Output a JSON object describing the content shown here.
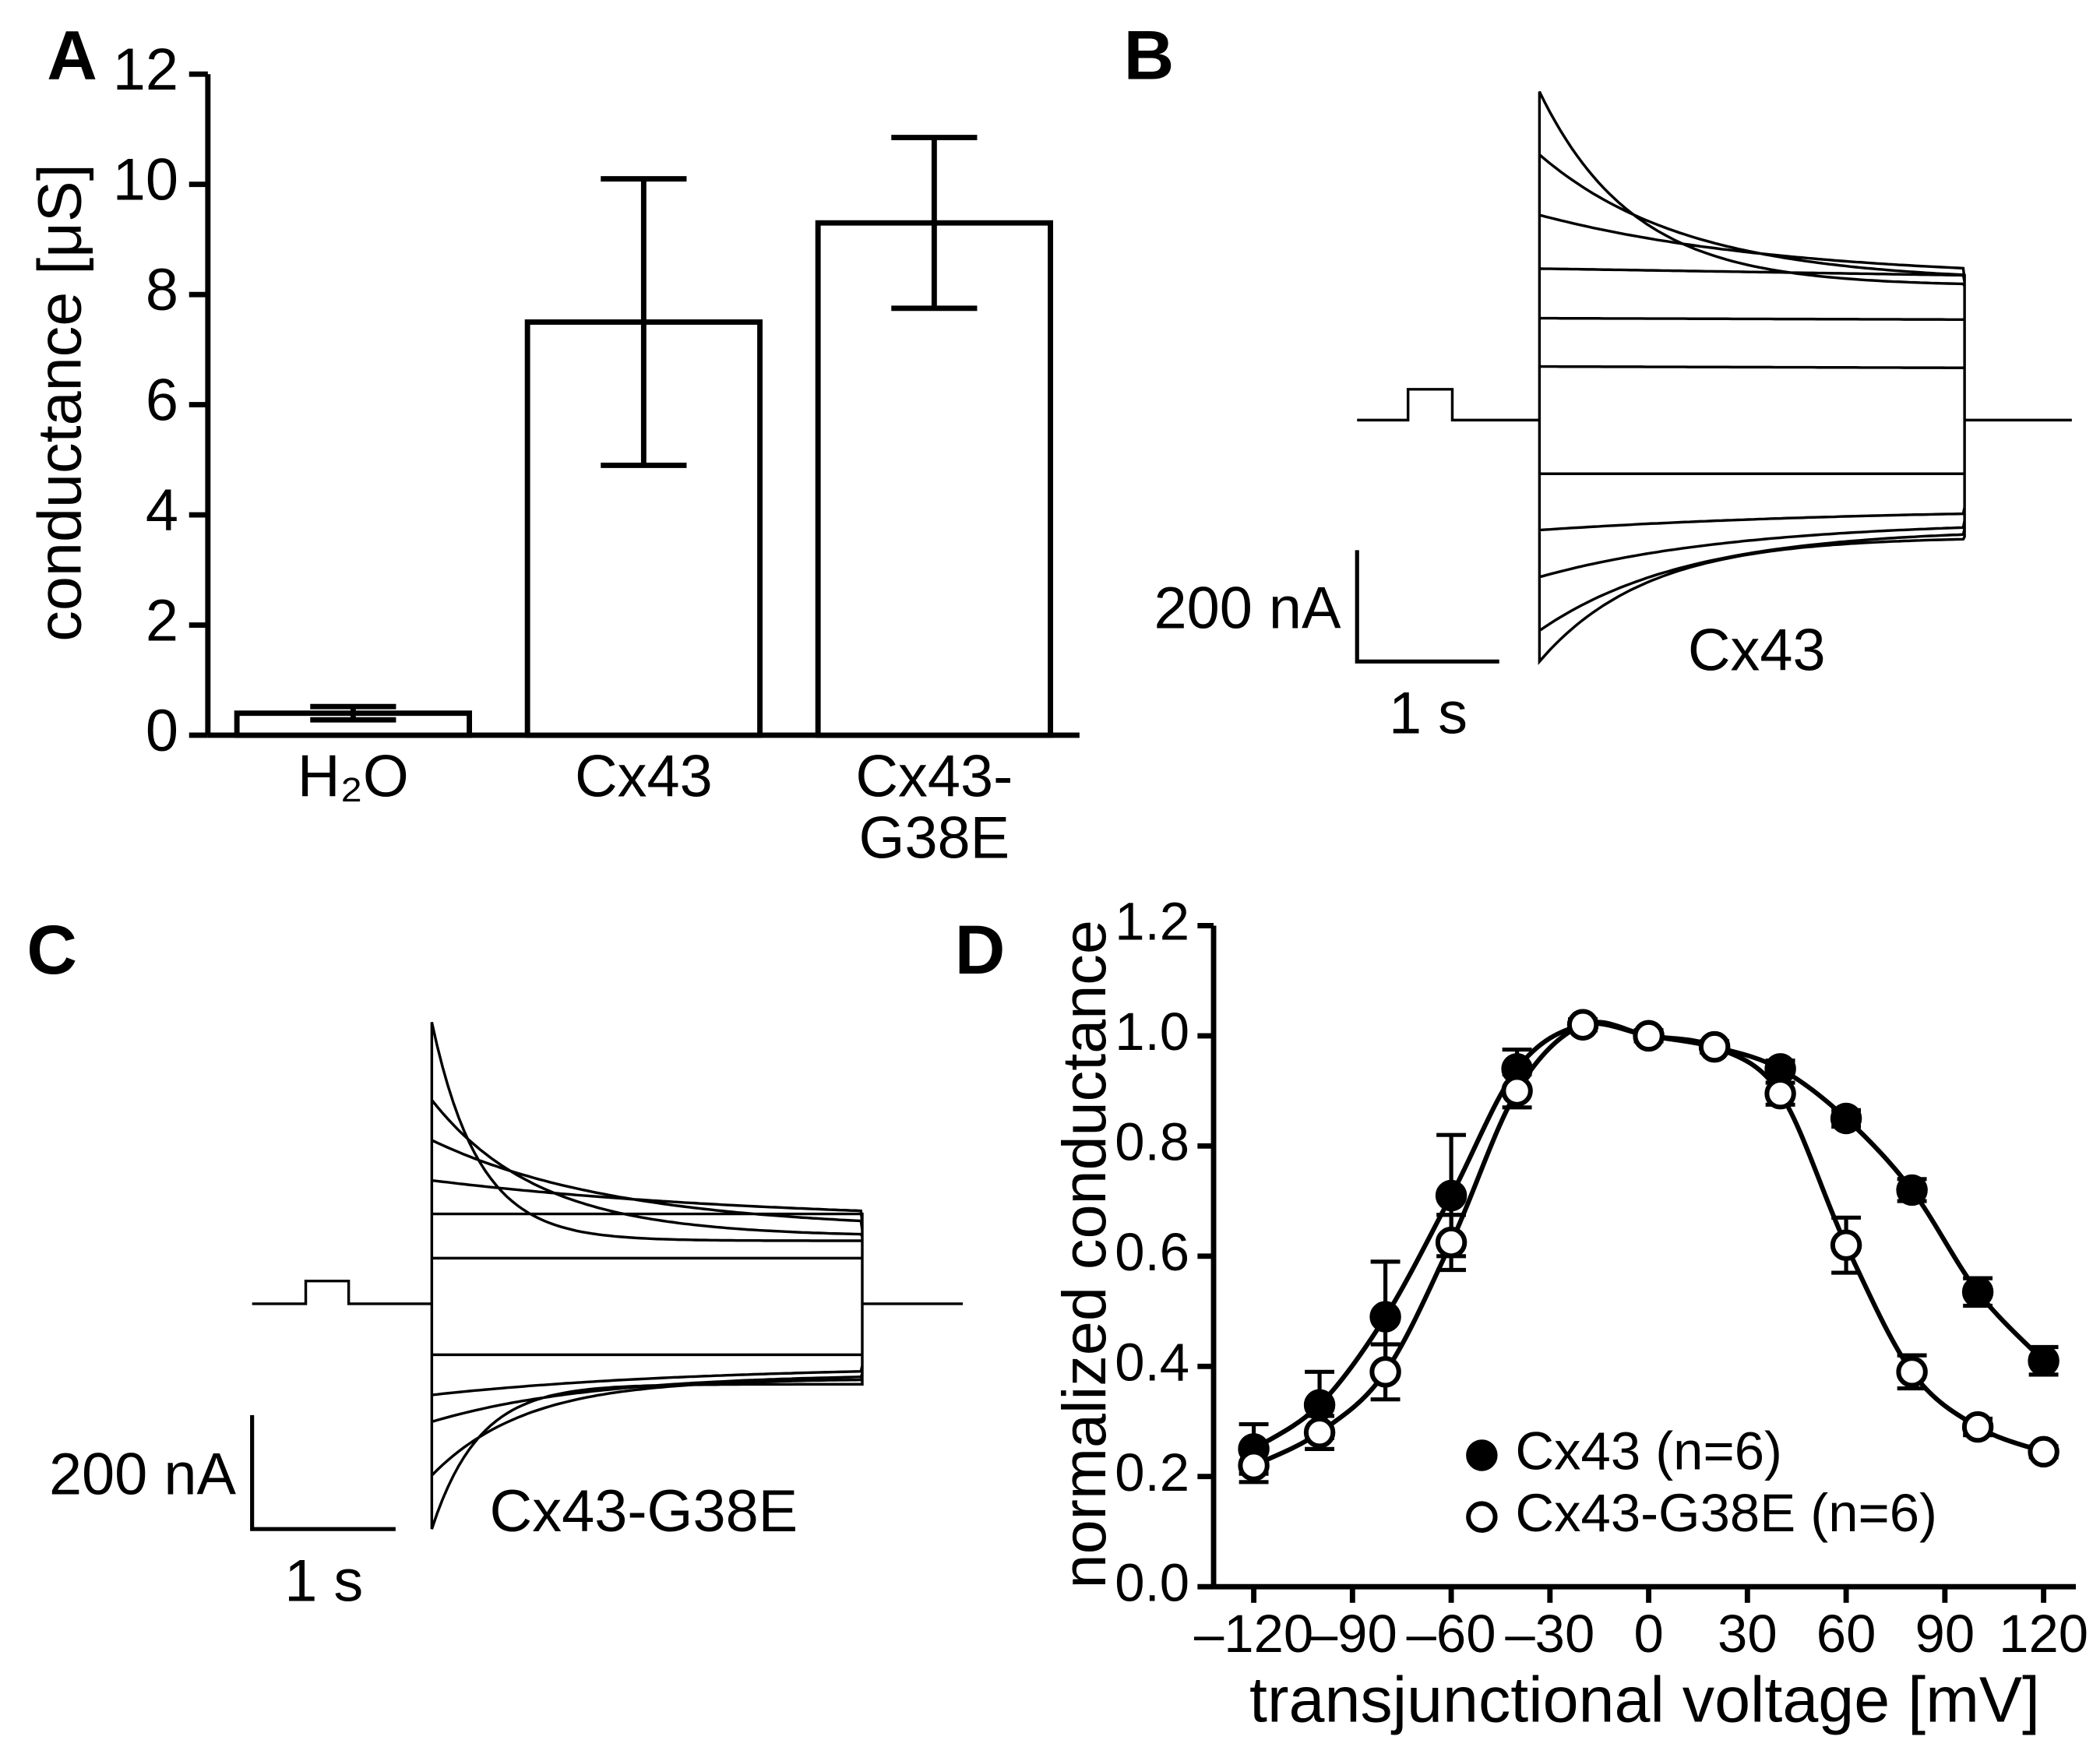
{
  "chart_data": [
    {
      "type": "bar",
      "panel": "A",
      "y_label": "conductance [μS]",
      "categories": [
        "H₂O",
        "Cx43",
        "Cx43-G38E"
      ],
      "values": [
        0.4,
        7.5,
        9.3
      ],
      "errors": [
        0.12,
        2.6,
        1.55
      ],
      "color": "#ffffff",
      "ylim": [
        0,
        12
      ],
      "yticks": [
        0,
        2,
        4,
        6,
        8,
        10,
        12
      ]
    },
    {
      "type": "scatter",
      "panel": "D",
      "x_label": "transjunctional voltage [mV]",
      "y_label": "normalized conductance",
      "x": [
        -120,
        -100,
        -80,
        -60,
        -40,
        -20,
        0,
        20,
        40,
        60,
        80,
        100,
        120
      ],
      "series": [
        {
          "name": "Cx43 (n=6)",
          "color": "#000000",
          "marker_fill": "#000000",
          "values": [
            0.25,
            0.33,
            0.49,
            0.71,
            0.94,
            1.02,
            1.0,
            0.98,
            0.94,
            0.85,
            0.72,
            0.535,
            0.41
          ],
          "errors": [
            0.045,
            0.06,
            0.1,
            0.11,
            0.035,
            0.01,
            0.01,
            0.01,
            0.015,
            0.015,
            0.02,
            0.025,
            0.025
          ]
        },
        {
          "name": "Cx43-G38E (n=6)",
          "color": "#000000",
          "marker_fill": "#ffffff",
          "values": [
            0.22,
            0.28,
            0.39,
            0.625,
            0.9,
            1.02,
            1.0,
            0.98,
            0.895,
            0.62,
            0.39,
            0.29,
            0.245
          ],
          "errors": [
            0.03,
            0.03,
            0.05,
            0.05,
            0.03,
            0.01,
            0.01,
            0.01,
            0.02,
            0.05,
            0.03,
            0.015,
            0.01
          ]
        }
      ],
      "legend": "lower right",
      "xlim": [
        -132.2,
        129.8
      ],
      "xticks": [
        {
          "value": -120,
          "label": "–120"
        },
        {
          "value": -90,
          "label": "–90"
        },
        {
          "value": -60,
          "label": "–60"
        },
        {
          "value": -30,
          "label": "–30"
        },
        0,
        30,
        60,
        90,
        120
      ],
      "ylim": [
        0,
        1.2
      ],
      "yticks": [
        {
          "value": 0,
          "label": "0.0"
        },
        0.2,
        0.4,
        0.6,
        0.8,
        {
          "value": 1,
          "label": "1.0"
        },
        1.2
      ]
    }
  ],
  "traces": [
    {
      "panel": "B",
      "name": "Cx43",
      "scale_current": "200 nA",
      "scale_time": "1 s"
    },
    {
      "panel": "C",
      "name": "Cx43-G38E",
      "scale_current": "200 nA",
      "scale_time": "1 s"
    }
  ]
}
